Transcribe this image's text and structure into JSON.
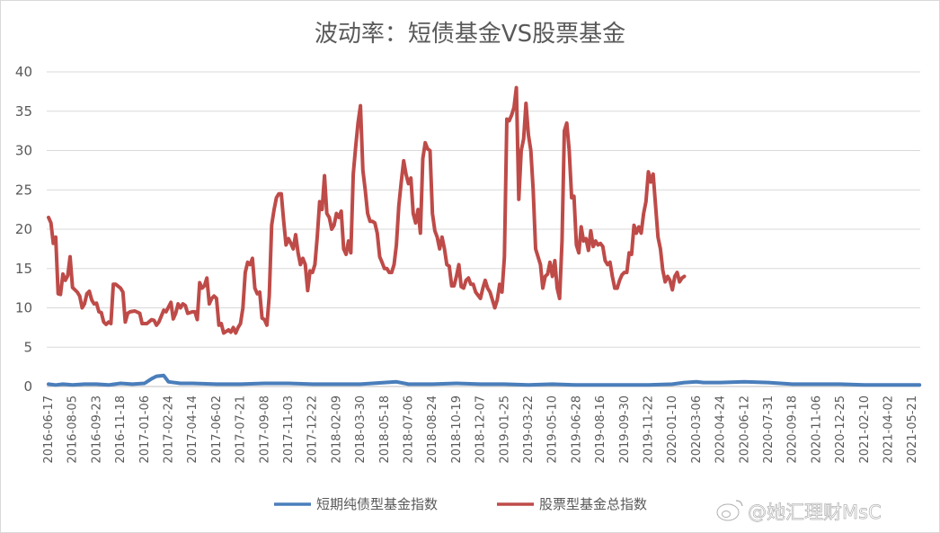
{
  "chart_data": {
    "type": "line",
    "title": "波动率：短债基金VS股票基金",
    "xlabel": "",
    "ylabel": "",
    "ylim": [
      0,
      40
    ],
    "yticks": [
      0,
      5,
      10,
      15,
      20,
      25,
      30,
      35,
      40
    ],
    "grid": true,
    "legend_position": "bottom",
    "x_tick_labels": [
      "2016-06-17",
      "2016-08-05",
      "2016-09-23",
      "2016-11-18",
      "2017-01-06",
      "2017-02-24",
      "2017-04-14",
      "2017-06-02",
      "2017-07-21",
      "2017-09-08",
      "2017-11-03",
      "2017-12-22",
      "2018-02-09",
      "2018-03-30",
      "2018-05-18",
      "2018-07-06",
      "2018-08-24",
      "2018-10-19",
      "2018-12-07",
      "2019-01-25",
      "2019-03-22",
      "2019-05-10",
      "2019-06-28",
      "2019-08-16",
      "2019-09-30",
      "2019-11-22",
      "2020-01-10",
      "2020-03-06",
      "2020-04-24",
      "2020-06-12",
      "2020-07-31",
      "2020-09-18",
      "2020-11-06",
      "2020-12-25",
      "2021-02-10",
      "2021-04-02",
      "2021-05-21"
    ],
    "series": [
      {
        "name": "短期纯债型基金指数",
        "color": "#4a7ebb",
        "points": [
          [
            0,
            0.3
          ],
          [
            0.3,
            0.2
          ],
          [
            0.6,
            0.3
          ],
          [
            1,
            0.2
          ],
          [
            1.5,
            0.3
          ],
          [
            2,
            0.3
          ],
          [
            2.5,
            0.2
          ],
          [
            3,
            0.4
          ],
          [
            3.5,
            0.3
          ],
          [
            4,
            0.4
          ],
          [
            4.3,
            1.0
          ],
          [
            4.5,
            1.3
          ],
          [
            4.8,
            1.4
          ],
          [
            5,
            0.6
          ],
          [
            5.5,
            0.4
          ],
          [
            6,
            0.4
          ],
          [
            7,
            0.3
          ],
          [
            8,
            0.3
          ],
          [
            9,
            0.4
          ],
          [
            10,
            0.4
          ],
          [
            11,
            0.3
          ],
          [
            12,
            0.3
          ],
          [
            13,
            0.3
          ],
          [
            14,
            0.5
          ],
          [
            14.5,
            0.6
          ],
          [
            15,
            0.3
          ],
          [
            16,
            0.3
          ],
          [
            17,
            0.4
          ],
          [
            18,
            0.3
          ],
          [
            19,
            0.3
          ],
          [
            20,
            0.2
          ],
          [
            21,
            0.3
          ],
          [
            22,
            0.2
          ],
          [
            23,
            0.2
          ],
          [
            24,
            0.2
          ],
          [
            25,
            0.2
          ],
          [
            26,
            0.3
          ],
          [
            26.5,
            0.5
          ],
          [
            27,
            0.6
          ],
          [
            27.3,
            0.5
          ],
          [
            28,
            0.5
          ],
          [
            29,
            0.6
          ],
          [
            30,
            0.5
          ],
          [
            31,
            0.3
          ],
          [
            32,
            0.3
          ],
          [
            33,
            0.3
          ],
          [
            34,
            0.2
          ],
          [
            35,
            0.2
          ],
          [
            36,
            0.2
          ],
          [
            36.3,
            0.2
          ]
        ]
      },
      {
        "name": "股票型基金总指数",
        "color": "#be4b48",
        "points": [
          [
            0,
            21.5
          ],
          [
            0.1,
            20.8
          ],
          [
            0.2,
            18.2
          ],
          [
            0.3,
            19.0
          ],
          [
            0.4,
            11.8
          ],
          [
            0.5,
            11.7
          ],
          [
            0.6,
            14.3
          ],
          [
            0.7,
            13.5
          ],
          [
            0.8,
            14.1
          ],
          [
            0.9,
            16.5
          ],
          [
            1,
            12.6
          ],
          [
            1.2,
            12.0
          ],
          [
            1.3,
            11.5
          ],
          [
            1.4,
            10.0
          ],
          [
            1.5,
            10.5
          ],
          [
            1.6,
            11.8
          ],
          [
            1.7,
            12.1
          ],
          [
            1.8,
            11.0
          ],
          [
            1.9,
            10.5
          ],
          [
            2,
            10.6
          ],
          [
            2.1,
            9.5
          ],
          [
            2.2,
            9.4
          ],
          [
            2.3,
            8.2
          ],
          [
            2.4,
            7.9
          ],
          [
            2.5,
            8.2
          ],
          [
            2.6,
            8.0
          ],
          [
            2.7,
            13.0
          ],
          [
            2.8,
            13.0
          ],
          [
            3,
            12.5
          ],
          [
            3.1,
            12.0
          ],
          [
            3.2,
            8.2
          ],
          [
            3.3,
            9.3
          ],
          [
            3.4,
            9.5
          ],
          [
            3.6,
            9.6
          ],
          [
            3.8,
            9.3
          ],
          [
            3.9,
            8.0
          ],
          [
            4.1,
            8.0
          ],
          [
            4.3,
            8.5
          ],
          [
            4.4,
            8.4
          ],
          [
            4.5,
            7.8
          ],
          [
            4.6,
            8.2
          ],
          [
            4.8,
            9.7
          ],
          [
            4.9,
            9.5
          ],
          [
            5,
            10.1
          ],
          [
            5.1,
            10.7
          ],
          [
            5.2,
            8.6
          ],
          [
            5.3,
            9.3
          ],
          [
            5.4,
            10.5
          ],
          [
            5.5,
            10.0
          ],
          [
            5.6,
            10.5
          ],
          [
            5.7,
            10.3
          ],
          [
            5.8,
            9.3
          ],
          [
            6,
            9.5
          ],
          [
            6.1,
            9.5
          ],
          [
            6.2,
            8.5
          ],
          [
            6.3,
            13.2
          ],
          [
            6.4,
            12.5
          ],
          [
            6.5,
            12.8
          ],
          [
            6.6,
            13.8
          ],
          [
            6.7,
            10.5
          ],
          [
            6.8,
            11.2
          ],
          [
            6.9,
            11.5
          ],
          [
            7,
            11.2
          ],
          [
            7.1,
            7.8
          ],
          [
            7.2,
            8.0
          ],
          [
            7.3,
            6.8
          ],
          [
            7.4,
            7.0
          ],
          [
            7.5,
            7.2
          ],
          [
            7.6,
            6.9
          ],
          [
            7.7,
            7.5
          ],
          [
            7.8,
            6.8
          ],
          [
            7.9,
            7.5
          ],
          [
            8,
            8.0
          ],
          [
            8.1,
            10.0
          ],
          [
            8.2,
            14.5
          ],
          [
            8.3,
            15.8
          ],
          [
            8.4,
            15.5
          ],
          [
            8.5,
            16.3
          ],
          [
            8.6,
            12.5
          ],
          [
            8.7,
            11.8
          ],
          [
            8.8,
            12.0
          ],
          [
            8.9,
            8.7
          ],
          [
            9,
            8.5
          ],
          [
            9.1,
            7.8
          ],
          [
            9.2,
            11.5
          ],
          [
            9.3,
            20.5
          ],
          [
            9.4,
            22.5
          ],
          [
            9.5,
            24.0
          ],
          [
            9.6,
            24.5
          ],
          [
            9.7,
            24.5
          ],
          [
            9.8,
            21.0
          ],
          [
            9.9,
            18.0
          ],
          [
            10,
            18.8
          ],
          [
            10.1,
            18.2
          ],
          [
            10.2,
            17.5
          ],
          [
            10.3,
            19.3
          ],
          [
            10.4,
            17.0
          ],
          [
            10.5,
            15.5
          ],
          [
            10.6,
            16.3
          ],
          [
            10.7,
            15.5
          ],
          [
            10.8,
            12.2
          ],
          [
            10.9,
            14.7
          ],
          [
            11,
            14.5
          ],
          [
            11.1,
            15.5
          ],
          [
            11.2,
            19.0
          ],
          [
            11.3,
            23.5
          ],
          [
            11.4,
            22.5
          ],
          [
            11.5,
            26.8
          ],
          [
            11.6,
            22.0
          ],
          [
            11.7,
            21.5
          ],
          [
            11.8,
            20.0
          ],
          [
            11.9,
            20.5
          ],
          [
            12,
            22.0
          ],
          [
            12.1,
            21.5
          ],
          [
            12.2,
            22.3
          ],
          [
            12.3,
            17.5
          ],
          [
            12.4,
            16.8
          ],
          [
            12.5,
            18.5
          ],
          [
            12.6,
            17.0
          ],
          [
            12.7,
            27.0
          ],
          [
            12.8,
            30.5
          ],
          [
            12.9,
            33.5
          ],
          [
            13,
            35.7
          ],
          [
            13.1,
            27.5
          ],
          [
            13.2,
            25.0
          ],
          [
            13.3,
            22.0
          ],
          [
            13.4,
            21.0
          ],
          [
            13.5,
            21.0
          ],
          [
            13.6,
            20.8
          ],
          [
            13.7,
            19.5
          ],
          [
            13.8,
            16.5
          ],
          [
            13.9,
            15.8
          ],
          [
            14,
            15.0
          ],
          [
            14.1,
            15.0
          ],
          [
            14.2,
            14.5
          ],
          [
            14.3,
            14.5
          ],
          [
            14.4,
            15.5
          ],
          [
            14.5,
            18.0
          ],
          [
            14.6,
            23.0
          ],
          [
            14.7,
            26.0
          ],
          [
            14.8,
            28.7
          ],
          [
            14.9,
            27.0
          ],
          [
            15,
            25.8
          ],
          [
            15.1,
            26.5
          ],
          [
            15.2,
            22.0
          ],
          [
            15.3,
            20.8
          ],
          [
            15.4,
            22.5
          ],
          [
            15.5,
            19.5
          ],
          [
            15.6,
            29.0
          ],
          [
            15.7,
            31.0
          ],
          [
            15.8,
            30.2
          ],
          [
            15.9,
            30.0
          ],
          [
            16,
            22.0
          ],
          [
            16.1,
            19.8
          ],
          [
            16.2,
            19.0
          ],
          [
            16.3,
            17.5
          ],
          [
            16.4,
            19.0
          ],
          [
            16.5,
            17.5
          ],
          [
            16.6,
            15.5
          ],
          [
            16.7,
            15.3
          ],
          [
            16.8,
            12.8
          ],
          [
            16.9,
            12.8
          ],
          [
            17,
            14.0
          ],
          [
            17.1,
            15.5
          ],
          [
            17.2,
            12.7
          ],
          [
            17.3,
            12.5
          ],
          [
            17.4,
            13.5
          ],
          [
            17.5,
            13.8
          ],
          [
            17.6,
            13.0
          ],
          [
            17.7,
            13.0
          ],
          [
            17.8,
            12.0
          ],
          [
            18,
            11.2
          ],
          [
            18.1,
            12.5
          ],
          [
            18.2,
            13.5
          ],
          [
            18.3,
            12.5
          ],
          [
            18.4,
            12.0
          ],
          [
            18.5,
            11.0
          ],
          [
            18.6,
            10.0
          ],
          [
            18.7,
            11.0
          ],
          [
            18.8,
            13.0
          ],
          [
            18.9,
            12.0
          ],
          [
            19,
            16.5
          ],
          [
            19.1,
            34.0
          ],
          [
            19.2,
            33.8
          ],
          [
            19.3,
            34.5
          ],
          [
            19.4,
            35.5
          ],
          [
            19.5,
            38.0
          ],
          [
            19.6,
            23.8
          ],
          [
            19.7,
            30.0
          ],
          [
            19.8,
            31.5
          ],
          [
            19.9,
            36.0
          ],
          [
            20,
            32.0
          ],
          [
            20.1,
            30.0
          ],
          [
            20.2,
            25.0
          ],
          [
            20.3,
            17.5
          ],
          [
            20.4,
            16.5
          ],
          [
            20.5,
            15.5
          ],
          [
            20.6,
            12.5
          ],
          [
            20.7,
            14.0
          ],
          [
            20.8,
            14.3
          ],
          [
            20.9,
            15.8
          ],
          [
            21,
            14.0
          ],
          [
            21.1,
            16.0
          ],
          [
            21.2,
            12.5
          ],
          [
            21.3,
            11.2
          ],
          [
            21.4,
            18.5
          ],
          [
            21.5,
            32.5
          ],
          [
            21.6,
            33.5
          ],
          [
            21.7,
            30.0
          ],
          [
            21.8,
            24.0
          ],
          [
            21.9,
            24.2
          ],
          [
            22,
            18.0
          ],
          [
            22.1,
            17.0
          ],
          [
            22.2,
            20.3
          ],
          [
            22.3,
            18.5
          ],
          [
            22.4,
            18.8
          ],
          [
            22.5,
            17.3
          ],
          [
            22.6,
            19.8
          ],
          [
            22.7,
            17.8
          ],
          [
            22.8,
            18.5
          ],
          [
            22.9,
            18.0
          ],
          [
            23,
            18.2
          ],
          [
            23.1,
            17.8
          ],
          [
            23.2,
            16.0
          ],
          [
            23.3,
            15.5
          ],
          [
            23.4,
            15.8
          ],
          [
            23.5,
            14.0
          ],
          [
            23.6,
            12.5
          ],
          [
            23.7,
            12.5
          ],
          [
            23.8,
            13.5
          ],
          [
            23.9,
            14.2
          ],
          [
            24,
            14.5
          ],
          [
            24.1,
            14.5
          ],
          [
            24.2,
            17.0
          ],
          [
            24.3,
            16.8
          ],
          [
            24.4,
            20.5
          ],
          [
            24.5,
            19.5
          ],
          [
            24.6,
            20.3
          ],
          [
            24.7,
            19.5
          ],
          [
            24.8,
            22.0
          ],
          [
            24.9,
            23.5
          ],
          [
            25,
            27.3
          ],
          [
            25.1,
            26.0
          ],
          [
            25.2,
            27.0
          ],
          [
            25.3,
            23.0
          ],
          [
            25.4,
            19.0
          ],
          [
            25.5,
            17.5
          ],
          [
            25.6,
            14.8
          ],
          [
            25.7,
            13.3
          ],
          [
            25.8,
            14.0
          ],
          [
            25.9,
            13.5
          ],
          [
            26,
            12.3
          ],
          [
            26.1,
            14.0
          ],
          [
            26.2,
            14.5
          ],
          [
            26.3,
            13.3
          ],
          [
            26.4,
            13.8
          ],
          [
            26.5,
            14.0
          ]
        ]
      }
    ]
  },
  "watermark_text": "@她汇理财MsC"
}
